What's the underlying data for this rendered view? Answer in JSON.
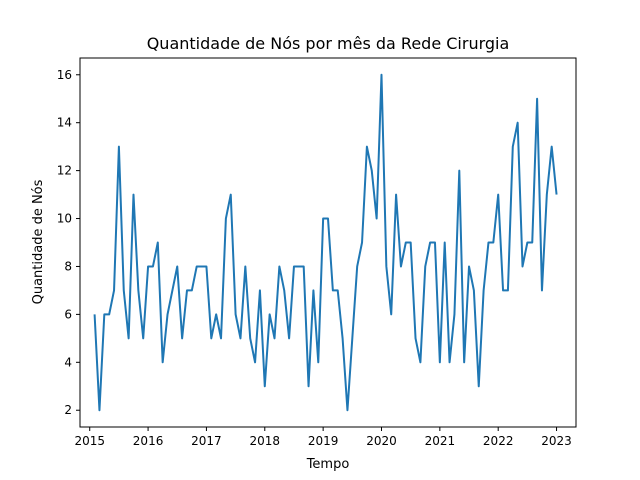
{
  "chart_data": {
    "type": "line",
    "title": "Quantidade de Nós por mês da Rede Cirurgia",
    "xlabel": "Tempo",
    "ylabel": "Quantidade de Nós",
    "x_ticks": [
      "2015",
      "2016",
      "2017",
      "2018",
      "2019",
      "2020",
      "2021",
      "2022",
      "2023"
    ],
    "y_ticks": [
      "2",
      "4",
      "6",
      "8",
      "10",
      "12",
      "14",
      "16"
    ],
    "xlim": [
      "2014-11",
      "2023-05"
    ],
    "ylim": [
      1.3,
      16.7
    ],
    "grid": false,
    "line_color": "#1f77b4",
    "x": [
      "2015-02",
      "2015-03",
      "2015-04",
      "2015-05",
      "2015-06",
      "2015-07",
      "2015-08",
      "2015-09",
      "2015-10",
      "2015-11",
      "2015-12",
      "2016-01",
      "2016-02",
      "2016-03",
      "2016-04",
      "2016-05",
      "2016-06",
      "2016-07",
      "2016-08",
      "2016-09",
      "2016-10",
      "2016-11",
      "2016-12",
      "2017-01",
      "2017-02",
      "2017-03",
      "2017-04",
      "2017-05",
      "2017-06",
      "2017-07",
      "2017-08",
      "2017-09",
      "2017-10",
      "2017-11",
      "2017-12",
      "2018-01",
      "2018-02",
      "2018-03",
      "2018-04",
      "2018-05",
      "2018-06",
      "2018-07",
      "2018-08",
      "2018-09",
      "2018-10",
      "2018-11",
      "2018-12",
      "2019-01",
      "2019-02",
      "2019-03",
      "2019-04",
      "2019-05",
      "2019-06",
      "2019-07",
      "2019-08",
      "2019-09",
      "2019-10",
      "2019-11",
      "2019-12",
      "2020-01",
      "2020-02",
      "2020-03",
      "2020-04",
      "2020-05",
      "2020-06",
      "2020-07",
      "2020-08",
      "2020-09",
      "2020-10",
      "2020-11",
      "2020-12",
      "2021-01",
      "2021-02",
      "2021-03",
      "2021-04",
      "2021-05",
      "2021-06",
      "2021-07",
      "2021-08",
      "2021-09",
      "2021-10",
      "2021-11",
      "2021-12",
      "2022-01",
      "2022-02",
      "2022-03",
      "2022-04",
      "2022-05",
      "2022-06",
      "2022-07",
      "2022-08",
      "2022-09",
      "2022-10",
      "2022-11",
      "2022-12",
      "2023-01"
    ],
    "series": [
      {
        "values": [
          6,
          2,
          6,
          6,
          7,
          13,
          7,
          5,
          11,
          7,
          5,
          8,
          8,
          9,
          4,
          6,
          7,
          8,
          5,
          7,
          7,
          8,
          8,
          8,
          5,
          6,
          5,
          10,
          11,
          6,
          5,
          8,
          5,
          4,
          7,
          3,
          6,
          5,
          8,
          7,
          5,
          8,
          8,
          8,
          3,
          7,
          4,
          10,
          10,
          7,
          7,
          5,
          2,
          5,
          8,
          9,
          13,
          12,
          10,
          16,
          8,
          6,
          11,
          8,
          9,
          9,
          5,
          4,
          8,
          9,
          9,
          4,
          9,
          4,
          6,
          12,
          4,
          8,
          7,
          3,
          7,
          9,
          9,
          11,
          7,
          7,
          13,
          14,
          8,
          9,
          9,
          15,
          7,
          11,
          13,
          11
        ]
      }
    ]
  }
}
